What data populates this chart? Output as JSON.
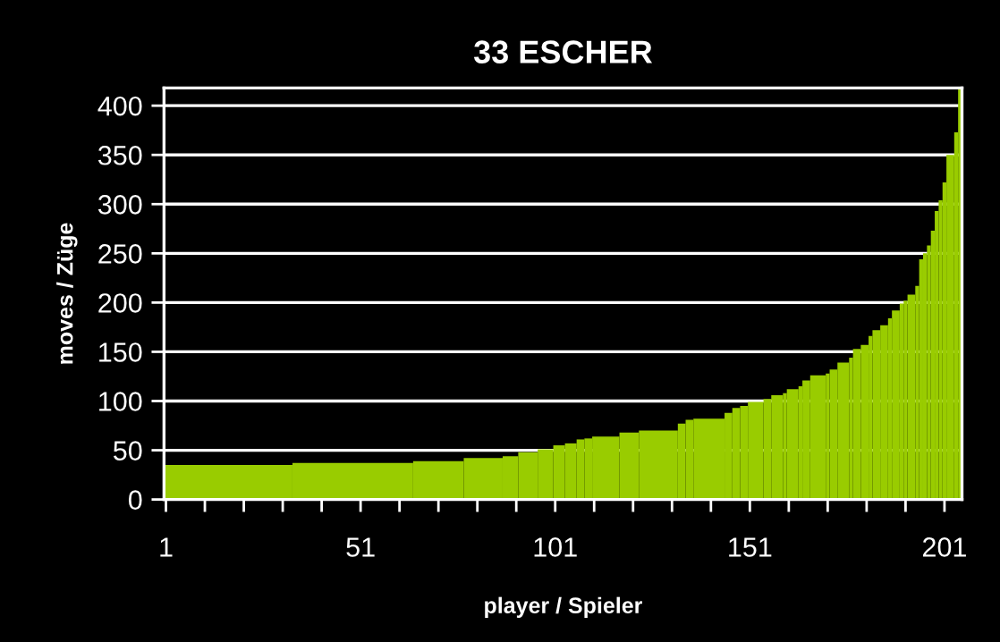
{
  "chart_data": {
    "type": "histogram",
    "title": "33 ESCHER",
    "xlabel": "player / Spieler",
    "ylabel": "moves / Züge",
    "color": "#99cc00",
    "bins": [
      0.5,
      33.5,
      64.5,
      77.5,
      87.5,
      91.5,
      96.5,
      100.5,
      103.5,
      106.5,
      108.5,
      110.5,
      117.5,
      122.5,
      132.5,
      134.5,
      136.5,
      144.5,
      146.5,
      148.5,
      150.5,
      154.5,
      156.5,
      159.5,
      160.5,
      163.5,
      164.5,
      166.5,
      170.5,
      171.5,
      173.5,
      176.5,
      177.5,
      179.5,
      181.5,
      182.5,
      184.5,
      186.5,
      187.5,
      189.5,
      190.5,
      191.5,
      193.5,
      194.5,
      195.5,
      196.5,
      197.5,
      198.5,
      199.5,
      200.5,
      201.5,
      203.5,
      204.5,
      205.5
    ],
    "values": [
      35,
      37,
      39,
      42,
      44,
      48,
      51,
      55,
      57,
      61,
      62,
      64,
      68,
      70,
      77,
      81,
      82,
      88,
      93,
      95,
      99,
      102,
      106,
      108,
      112,
      115,
      121,
      126,
      128,
      132,
      139,
      144,
      153,
      157,
      166,
      172,
      177,
      184,
      192,
      199,
      202,
      208,
      217,
      244,
      250,
      258,
      273,
      293,
      304,
      322,
      350,
      373,
      418
    ],
    "xlim": [
      0.5,
      205.5
    ],
    "xticks": [
      1,
      {
        "value": 11,
        "label": null
      },
      {
        "value": 21,
        "label": null
      },
      {
        "value": 31,
        "label": null
      },
      {
        "value": 41,
        "label": null
      },
      51,
      {
        "value": 61,
        "label": null
      },
      {
        "value": 71,
        "label": null
      },
      {
        "value": 81,
        "label": null
      },
      {
        "value": 91,
        "label": null
      },
      101,
      {
        "value": 111,
        "label": null
      },
      {
        "value": 121,
        "label": null
      },
      {
        "value": 131,
        "label": null
      },
      {
        "value": 141,
        "label": null
      },
      151,
      {
        "value": 161,
        "label": null
      },
      {
        "value": 171,
        "label": null
      },
      {
        "value": 181,
        "label": null
      },
      {
        "value": 191,
        "label": null
      },
      201
    ],
    "ylim": [
      0,
      418
    ],
    "yticks": [
      0,
      50,
      100,
      150,
      200,
      250,
      300,
      350,
      400
    ],
    "grid": "y"
  }
}
